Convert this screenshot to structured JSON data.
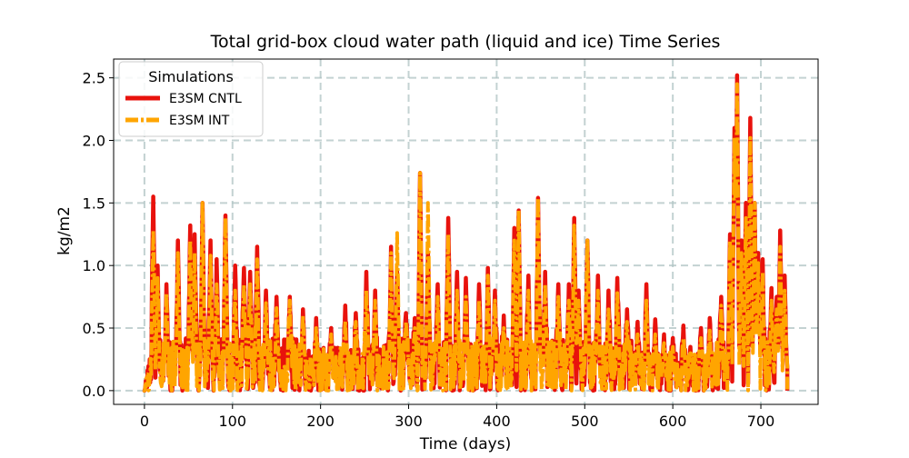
{
  "chart_data": {
    "type": "line",
    "title": "Total grid-box cloud water path (liquid and ice) Time Series",
    "xlabel": "Time (days)",
    "ylabel": "kg/m2",
    "xlim": [
      -35,
      765
    ],
    "ylim": [
      -0.11,
      2.65
    ],
    "xticks": [
      0,
      100,
      200,
      300,
      400,
      500,
      600,
      700
    ],
    "yticks": [
      0.0,
      0.5,
      1.0,
      1.5,
      2.0,
      2.5
    ],
    "xtick_labels": [
      "0",
      "100",
      "200",
      "300",
      "400",
      "500",
      "600",
      "700"
    ],
    "ytick_labels": [
      "0.0",
      "0.5",
      "1.0",
      "1.5",
      "2.0",
      "2.5"
    ],
    "grid": true,
    "legend": {
      "title": "Simulations",
      "placement": "top-left"
    },
    "series": [
      {
        "name": "E3SM CNTL",
        "color": "#e8120c",
        "style": "solid",
        "peaks": [
          [
            10,
            1.55
          ],
          [
            15,
            1.0
          ],
          [
            25,
            0.85
          ],
          [
            38,
            1.2
          ],
          [
            52,
            1.32
          ],
          [
            57,
            1.25
          ],
          [
            66,
            1.5
          ],
          [
            75,
            1.2
          ],
          [
            82,
            1.05
          ],
          [
            92,
            1.4
          ],
          [
            103,
            1.0
          ],
          [
            113,
            0.98
          ],
          [
            120,
            0.95
          ],
          [
            128,
            1.15
          ],
          [
            138,
            0.8
          ],
          [
            150,
            0.75
          ],
          [
            165,
            0.75
          ],
          [
            180,
            0.65
          ],
          [
            195,
            0.58
          ],
          [
            212,
            0.5
          ],
          [
            228,
            0.68
          ],
          [
            240,
            0.62
          ],
          [
            252,
            0.95
          ],
          [
            262,
            0.8
          ],
          [
            280,
            1.15
          ],
          [
            287,
            0.95
          ],
          [
            297,
            0.62
          ],
          [
            307,
            0.58
          ],
          [
            313,
            1.74
          ],
          [
            322,
            1.1
          ],
          [
            333,
            0.85
          ],
          [
            345,
            1.38
          ],
          [
            355,
            0.95
          ],
          [
            365,
            0.9
          ],
          [
            380,
            0.85
          ],
          [
            390,
            0.98
          ],
          [
            398,
            0.8
          ],
          [
            408,
            0.6
          ],
          [
            420,
            1.3
          ],
          [
            425,
            1.44
          ],
          [
            436,
            0.92
          ],
          [
            447,
            1.54
          ],
          [
            455,
            0.95
          ],
          [
            470,
            0.85
          ],
          [
            482,
            0.85
          ],
          [
            488,
            1.38
          ],
          [
            493,
            0.8
          ],
          [
            503,
            1.2
          ],
          [
            515,
            0.92
          ],
          [
            527,
            0.8
          ],
          [
            537,
            0.9
          ],
          [
            548,
            0.65
          ],
          [
            560,
            0.55
          ],
          [
            570,
            0.85
          ],
          [
            580,
            0.57
          ],
          [
            590,
            0.45
          ],
          [
            600,
            0.42
          ],
          [
            612,
            0.52
          ],
          [
            620,
            0.35
          ],
          [
            632,
            0.5
          ],
          [
            642,
            0.58
          ],
          [
            655,
            0.75
          ],
          [
            665,
            1.25
          ],
          [
            670,
            2.1
          ],
          [
            673,
            2.52
          ],
          [
            678,
            1.2
          ],
          [
            683,
            1.5
          ],
          [
            688,
            2.18
          ],
          [
            693,
            1.5
          ],
          [
            697,
            1.1
          ],
          [
            702,
            1.05
          ],
          [
            712,
            0.82
          ],
          [
            718,
            0.75
          ],
          [
            722,
            1.28
          ],
          [
            727,
            0.92
          ]
        ]
      },
      {
        "name": "E3SM INT",
        "color": "#ffa500",
        "style": "dashdot",
        "peaks": [
          [
            10,
            1.28
          ],
          [
            15,
            0.9
          ],
          [
            25,
            0.78
          ],
          [
            38,
            1.1
          ],
          [
            52,
            1.2
          ],
          [
            57,
            1.1
          ],
          [
            66,
            1.5
          ],
          [
            75,
            1.08
          ],
          [
            82,
            0.85
          ],
          [
            92,
            1.38
          ],
          [
            103,
            0.8
          ],
          [
            113,
            0.85
          ],
          [
            120,
            0.85
          ],
          [
            128,
            1.05
          ],
          [
            138,
            0.7
          ],
          [
            150,
            0.66
          ],
          [
            165,
            0.72
          ],
          [
            180,
            0.6
          ],
          [
            195,
            0.5
          ],
          [
            212,
            0.45
          ],
          [
            228,
            0.56
          ],
          [
            240,
            0.55
          ],
          [
            252,
            0.8
          ],
          [
            262,
            0.72
          ],
          [
            280,
            1.1
          ],
          [
            287,
            1.26
          ],
          [
            297,
            0.55
          ],
          [
            307,
            0.5
          ],
          [
            313,
            1.74
          ],
          [
            322,
            1.5
          ],
          [
            333,
            0.75
          ],
          [
            345,
            1.25
          ],
          [
            355,
            0.8
          ],
          [
            365,
            0.75
          ],
          [
            380,
            0.72
          ],
          [
            390,
            0.92
          ],
          [
            398,
            0.72
          ],
          [
            408,
            0.5
          ],
          [
            420,
            1.2
          ],
          [
            425,
            1.44
          ],
          [
            436,
            0.8
          ],
          [
            447,
            1.54
          ],
          [
            455,
            0.85
          ],
          [
            470,
            0.75
          ],
          [
            482,
            0.72
          ],
          [
            488,
            1.32
          ],
          [
            493,
            0.72
          ],
          [
            503,
            1.2
          ],
          [
            515,
            0.8
          ],
          [
            527,
            0.65
          ],
          [
            537,
            0.78
          ],
          [
            548,
            0.55
          ],
          [
            560,
            0.45
          ],
          [
            570,
            0.72
          ],
          [
            580,
            0.45
          ],
          [
            590,
            0.38
          ],
          [
            600,
            0.35
          ],
          [
            612,
            0.42
          ],
          [
            620,
            0.3
          ],
          [
            632,
            0.42
          ],
          [
            642,
            0.48
          ],
          [
            655,
            0.68
          ],
          [
            665,
            1.2
          ],
          [
            670,
            2.02
          ],
          [
            673,
            2.45
          ],
          [
            678,
            1.1
          ],
          [
            683,
            1.38
          ],
          [
            688,
            2.02
          ],
          [
            693,
            1.5
          ],
          [
            697,
            1.02
          ],
          [
            702,
            0.95
          ],
          [
            712,
            0.72
          ],
          [
            718,
            0.65
          ],
          [
            722,
            1.15
          ],
          [
            727,
            0.8
          ]
        ]
      }
    ]
  }
}
